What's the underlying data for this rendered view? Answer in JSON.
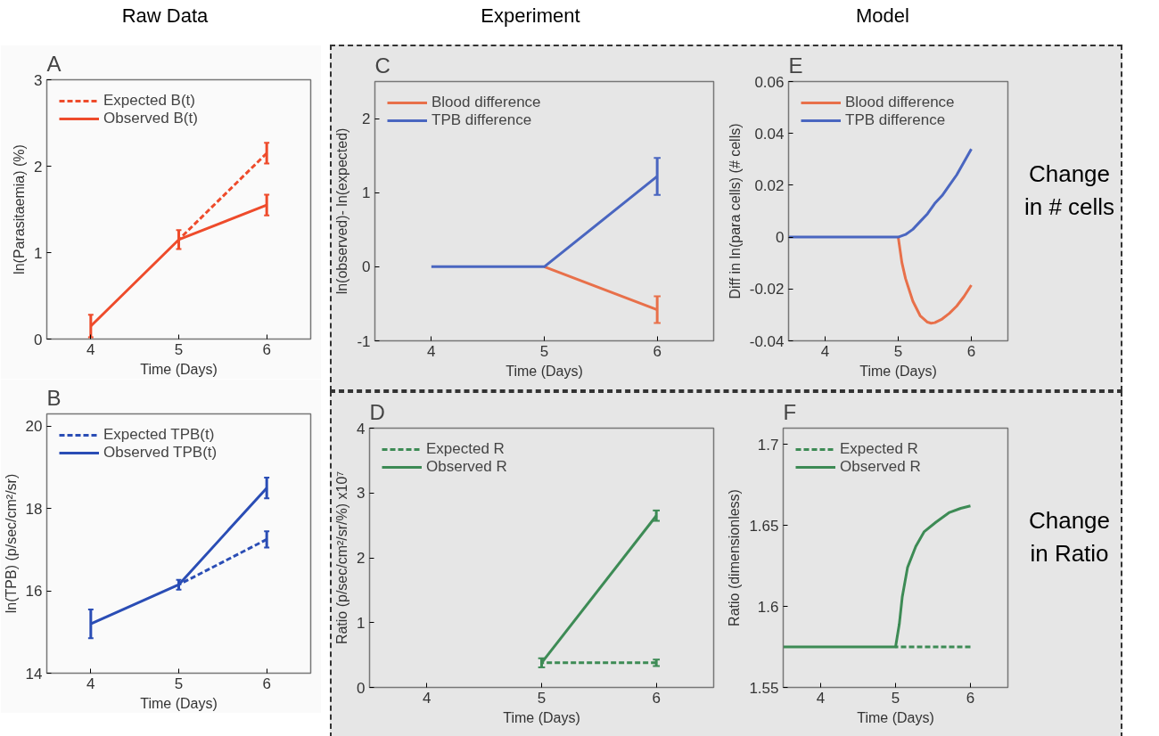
{
  "chart_data": [
    {
      "type": "line",
      "title": "A",
      "xlabel": "Time (Days)",
      "ylabel": "ln(Parasitaemia) (%)",
      "annotations": [
        "Raw Data"
      ],
      "xlim": [
        3.5,
        6.5
      ],
      "xticks": [
        4,
        5,
        6
      ],
      "ylim": [
        0,
        3
      ],
      "yticks": [
        0,
        1,
        2,
        3
      ],
      "grid": false,
      "legend": "top left",
      "marker": "none",
      "series": [
        {
          "name": "Expected B(t)",
          "color": "#ee4b2b",
          "line_style": "dashed",
          "x": [
            5,
            6
          ],
          "values": [
            1.15,
            2.15
          ],
          "errors": [
            null,
            0.12
          ]
        },
        {
          "name": "Observed B(t)",
          "color": "#ee4b2b",
          "line_style": "solid",
          "x": [
            4,
            5,
            6
          ],
          "values": [
            0.15,
            1.15,
            1.55
          ],
          "errors": [
            0.13,
            0.11,
            0.12
          ]
        }
      ]
    },
    {
      "type": "line",
      "title": "C",
      "xlabel": "Time (Days)",
      "ylabel": "ln(observed)- ln(expected)",
      "annotations": [
        "Experiment"
      ],
      "xlim": [
        3.5,
        6.5
      ],
      "xticks": [
        4,
        5,
        6
      ],
      "ylim": [
        -1,
        2.5
      ],
      "yticks": [
        -1,
        0,
        1,
        2
      ],
      "grid": false,
      "legend": "top left",
      "marker": "none",
      "series": [
        {
          "name": "Blood difference",
          "color": "#e8704a",
          "x": [
            5,
            6
          ],
          "values": [
            0,
            -0.58
          ],
          "errors": [
            null,
            0.18
          ]
        },
        {
          "name": "TPB difference",
          "color": "#4a66c0",
          "x": [
            4,
            5,
            6
          ],
          "values": [
            0,
            0,
            1.22
          ],
          "errors": [
            null,
            null,
            0.25
          ]
        }
      ]
    },
    {
      "type": "line",
      "title": "E",
      "xlabel": "Time (Days)",
      "ylabel": "Diff in ln(para cells) (# cells)",
      "annotations": [
        "Model",
        "Change in # cells"
      ],
      "xlim": [
        3.5,
        6.5
      ],
      "xticks": [
        4,
        5,
        6
      ],
      "ylim": [
        -0.04,
        0.06
      ],
      "yticks": [
        -0.04,
        -0.02,
        0,
        0.02,
        0.04,
        0.06
      ],
      "grid": false,
      "legend": "top left",
      "marker": "none",
      "series": [
        {
          "name": "Blood difference",
          "color": "#e8704a",
          "x": [
            5,
            5.05,
            5.1,
            5.2,
            5.3,
            5.4,
            5.45,
            5.5,
            5.6,
            5.7,
            5.8,
            5.9,
            6
          ],
          "values": [
            0,
            -0.0098,
            -0.016,
            -0.0247,
            -0.0303,
            -0.0328,
            -0.0332,
            -0.033,
            -0.0316,
            -0.0294,
            -0.0266,
            -0.0229,
            -0.0185
          ]
        },
        {
          "name": "TPB difference",
          "color": "#4a66c0",
          "x": [
            3.5,
            5,
            5.1,
            5.2,
            5.3,
            5.4,
            5.5,
            5.6,
            5.7,
            5.8,
            5.9,
            6
          ],
          "values": [
            0,
            0,
            0.001,
            0.003,
            0.006,
            0.009,
            0.013,
            0.016,
            0.02,
            0.024,
            0.029,
            0.034
          ]
        }
      ]
    },
    {
      "type": "line",
      "title": "B",
      "xlabel": "Time (Days)",
      "ylabel": "ln(TPB) (p/sec/cm²/sr)",
      "xlim": [
        3.5,
        6.5
      ],
      "xticks": [
        4,
        5,
        6
      ],
      "ylim": [
        14,
        20.3
      ],
      "yticks": [
        14,
        16,
        18,
        20
      ],
      "grid": false,
      "legend": "top left",
      "marker": "none",
      "series": [
        {
          "name": "Expected TPB(t)",
          "color": "#2a4db5",
          "line_style": "dashed",
          "x": [
            5,
            6
          ],
          "values": [
            16.15,
            17.25
          ],
          "errors": [
            null,
            0.2
          ]
        },
        {
          "name": "Observed TPB(t)",
          "color": "#2a4db5",
          "line_style": "solid",
          "x": [
            4,
            5,
            6
          ],
          "values": [
            15.2,
            16.15,
            18.5
          ],
          "errors": [
            0.35,
            0.12,
            0.25
          ]
        }
      ]
    },
    {
      "type": "line",
      "title": "D",
      "xlabel": "Time (Days)",
      "ylabel": "Ratio (p/sec/cm²/sr/%) x10⁷",
      "xlim": [
        3.5,
        6.5
      ],
      "xticks": [
        4,
        5,
        6
      ],
      "ylim": [
        0,
        4
      ],
      "yticks": [
        0,
        1,
        2,
        3,
        4
      ],
      "grid": false,
      "legend": "top left",
      "marker": "none",
      "series": [
        {
          "name": "Expected R",
          "color": "#3d8b55",
          "line_style": "dashed",
          "x": [
            5,
            6
          ],
          "values": [
            0.38,
            0.38
          ],
          "errors": [
            null,
            0.05
          ]
        },
        {
          "name": "Observed R",
          "color": "#3d8b55",
          "line_style": "solid",
          "x": [
            5,
            6
          ],
          "values": [
            0.38,
            2.65
          ],
          "errors": [
            0.07,
            0.08
          ]
        }
      ]
    },
    {
      "type": "line",
      "title": "F",
      "xlabel": "Time (Days)",
      "ylabel": "Ratio (dimensionless)",
      "annotations": [
        "Change in Ratio"
      ],
      "xlim": [
        3.5,
        6.5
      ],
      "xticks": [
        4,
        5,
        6
      ],
      "ylim": [
        1.55,
        1.71
      ],
      "yticks": [
        1.55,
        1.6,
        1.65,
        1.7
      ],
      "grid": false,
      "legend": "top left",
      "marker": "none",
      "series": [
        {
          "name": "Expected R",
          "color": "#3d8b55",
          "line_style": "dashed",
          "x": [
            5,
            6
          ],
          "values": [
            1.575,
            1.575
          ]
        },
        {
          "name": "Observed R",
          "color": "#3d8b55",
          "line_style": "solid",
          "x": [
            3.5,
            5,
            5.05,
            5.09,
            5.16,
            5.27,
            5.38,
            5.54,
            5.72,
            5.87,
            6
          ],
          "values": [
            1.575,
            1.575,
            1.589,
            1.606,
            1.624,
            1.637,
            1.646,
            1.652,
            1.658,
            1.6605,
            1.662
          ]
        }
      ]
    }
  ]
}
